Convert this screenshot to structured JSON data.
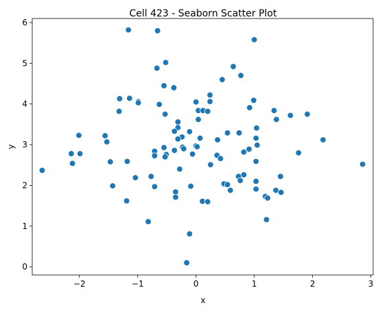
{
  "chart_data": {
    "type": "scatter",
    "title": "Cell 423 - Seaborn Scatter Plot",
    "xlabel": "x",
    "ylabel": "y",
    "xlim": [
      -2.81,
      3.04
    ],
    "ylim": [
      -0.2,
      6.1
    ],
    "xticks": [
      -2,
      -1,
      0,
      1,
      2,
      3
    ],
    "yticks": [
      0,
      1,
      2,
      3,
      4,
      5,
      6
    ],
    "grid": false,
    "marker_color": "#1f77b4",
    "marker_edge": "#ffffff",
    "points": [
      {
        "x": -1.16,
        "y": 5.82
      },
      {
        "x": -0.66,
        "y": 5.8
      },
      {
        "x": 1.0,
        "y": 5.58
      },
      {
        "x": -0.52,
        "y": 5.02
      },
      {
        "x": 0.64,
        "y": 4.92
      },
      {
        "x": -0.67,
        "y": 4.88
      },
      {
        "x": 0.77,
        "y": 4.7
      },
      {
        "x": 0.45,
        "y": 4.6
      },
      {
        "x": -0.55,
        "y": 4.45
      },
      {
        "x": -0.38,
        "y": 4.4
      },
      {
        "x": 0.24,
        "y": 4.22
      },
      {
        "x": -1.31,
        "y": 4.13
      },
      {
        "x": -1.14,
        "y": 4.14
      },
      {
        "x": 0.99,
        "y": 4.09
      },
      {
        "x": -0.99,
        "y": 4.06
      },
      {
        "x": -0.99,
        "y": 4.03
      },
      {
        "x": 0.0,
        "y": 4.05
      },
      {
        "x": 0.24,
        "y": 4.06
      },
      {
        "x": -0.63,
        "y": 3.99
      },
      {
        "x": 0.92,
        "y": 3.91
      },
      {
        "x": 0.04,
        "y": 3.84
      },
      {
        "x": 0.12,
        "y": 3.84
      },
      {
        "x": 0.2,
        "y": 3.82
      },
      {
        "x": -1.32,
        "y": 3.82
      },
      {
        "x": 1.34,
        "y": 3.84
      },
      {
        "x": 1.91,
        "y": 3.75
      },
      {
        "x": -0.53,
        "y": 3.75
      },
      {
        "x": 1.62,
        "y": 3.72
      },
      {
        "x": 0.04,
        "y": 3.62
      },
      {
        "x": 1.38,
        "y": 3.62
      },
      {
        "x": -0.31,
        "y": 3.56
      },
      {
        "x": -0.31,
        "y": 3.42
      },
      {
        "x": 1.04,
        "y": 3.41
      },
      {
        "x": -0.11,
        "y": 3.32
      },
      {
        "x": -0.37,
        "y": 3.33
      },
      {
        "x": 0.54,
        "y": 3.29
      },
      {
        "x": 0.74,
        "y": 3.29
      },
      {
        "x": -2.01,
        "y": 3.23
      },
      {
        "x": -1.56,
        "y": 3.22
      },
      {
        "x": -0.24,
        "y": 3.19
      },
      {
        "x": 0.07,
        "y": 3.16
      },
      {
        "x": 1.03,
        "y": 3.16
      },
      {
        "x": -0.31,
        "y": 3.14
      },
      {
        "x": 0.37,
        "y": 3.12
      },
      {
        "x": 2.18,
        "y": 3.12
      },
      {
        "x": -1.53,
        "y": 3.07
      },
      {
        "x": 1.05,
        "y": 2.99
      },
      {
        "x": 0.0,
        "y": 2.97
      },
      {
        "x": 0.02,
        "y": 2.95
      },
      {
        "x": -0.23,
        "y": 2.94
      },
      {
        "x": -0.55,
        "y": 2.93
      },
      {
        "x": -0.21,
        "y": 2.9
      },
      {
        "x": 0.91,
        "y": 2.89
      },
      {
        "x": -0.37,
        "y": 2.86
      },
      {
        "x": -0.71,
        "y": 2.84
      },
      {
        "x": 0.82,
        "y": 2.82
      },
      {
        "x": 1.76,
        "y": 2.8
      },
      {
        "x": -2.14,
        "y": 2.78
      },
      {
        "x": -1.99,
        "y": 2.78
      },
      {
        "x": -0.06,
        "y": 2.77
      },
      {
        "x": -0.51,
        "y": 2.76
      },
      {
        "x": 0.36,
        "y": 2.74
      },
      {
        "x": -0.71,
        "y": 2.73
      },
      {
        "x": -0.53,
        "y": 2.7
      },
      {
        "x": 0.42,
        "y": 2.66
      },
      {
        "x": -1.18,
        "y": 2.59
      },
      {
        "x": 1.03,
        "y": 2.59
      },
      {
        "x": -1.47,
        "y": 2.58
      },
      {
        "x": -2.12,
        "y": 2.54
      },
      {
        "x": 2.86,
        "y": 2.52
      },
      {
        "x": 0.25,
        "y": 2.51
      },
      {
        "x": -0.28,
        "y": 2.4
      },
      {
        "x": -2.64,
        "y": 2.37
      },
      {
        "x": 0.82,
        "y": 2.26
      },
      {
        "x": -0.77,
        "y": 2.22
      },
      {
        "x": 0.73,
        "y": 2.22
      },
      {
        "x": 1.45,
        "y": 2.22
      },
      {
        "x": -1.04,
        "y": 2.19
      },
      {
        "x": 0.76,
        "y": 2.12
      },
      {
        "x": 1.03,
        "y": 2.1
      },
      {
        "x": 0.48,
        "y": 2.04
      },
      {
        "x": 0.54,
        "y": 2.02
      },
      {
        "x": -1.43,
        "y": 1.99
      },
      {
        "x": -0.09,
        "y": 1.98
      },
      {
        "x": -0.71,
        "y": 1.97
      },
      {
        "x": 1.03,
        "y": 1.91
      },
      {
        "x": 0.59,
        "y": 1.88
      },
      {
        "x": 1.37,
        "y": 1.88
      },
      {
        "x": -0.35,
        "y": 1.84
      },
      {
        "x": 1.46,
        "y": 1.83
      },
      {
        "x": 1.19,
        "y": 1.73
      },
      {
        "x": -0.35,
        "y": 1.71
      },
      {
        "x": 1.23,
        "y": 1.69
      },
      {
        "x": -1.19,
        "y": 1.62
      },
      {
        "x": 0.11,
        "y": 1.61
      },
      {
        "x": 0.2,
        "y": 1.6
      },
      {
        "x": 1.21,
        "y": 1.16
      },
      {
        "x": -0.82,
        "y": 1.11
      },
      {
        "x": -0.11,
        "y": 0.81
      },
      {
        "x": -0.16,
        "y": 0.1
      }
    ]
  }
}
